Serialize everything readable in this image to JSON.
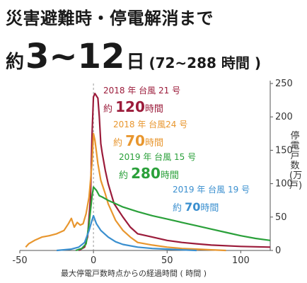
{
  "header": {
    "line1": "災害避難時・停電解消まで",
    "line2_prefix": "約",
    "line2_big": "3~12",
    "line2_unit": "日",
    "line2_paren": "(72~288 時間 )"
  },
  "chart_data": {
    "type": "line",
    "xlabel": "最大停電戸数時点からの経過時間 ( 時間 )",
    "ylabel": "停電戸数 (万戸)",
    "xlim": [
      -50,
      120
    ],
    "ylim": [
      0,
      250
    ],
    "xticks": [
      -50,
      0,
      50,
      100
    ],
    "yticks": [
      0,
      50,
      100,
      150,
      200,
      250
    ],
    "grid": false,
    "series": [
      {
        "name": "2018 年 台風 21 号",
        "value_label": "約 120 時間",
        "color": "#9b1b3a",
        "points": [
          [
            -10,
            0
          ],
          [
            -6,
            5
          ],
          [
            -4,
            20
          ],
          [
            -2,
            80
          ],
          [
            -1,
            170
          ],
          [
            0,
            230
          ],
          [
            1,
            235
          ],
          [
            3,
            228
          ],
          [
            4,
            200
          ],
          [
            5,
            160
          ],
          [
            6,
            145
          ],
          [
            8,
            120
          ],
          [
            10,
            100
          ],
          [
            12,
            85
          ],
          [
            14,
            70
          ],
          [
            17,
            60
          ],
          [
            20,
            50
          ],
          [
            25,
            35
          ],
          [
            30,
            25
          ],
          [
            40,
            20
          ],
          [
            50,
            15
          ],
          [
            60,
            12
          ],
          [
            70,
            10
          ],
          [
            80,
            8
          ],
          [
            100,
            6
          ],
          [
            120,
            5
          ]
        ]
      },
      {
        "name": "2018 年 台風24 号",
        "value_label": "約 70 時間",
        "color": "#e8962e",
        "points": [
          [
            -46,
            5
          ],
          [
            -44,
            10
          ],
          [
            -40,
            15
          ],
          [
            -35,
            20
          ],
          [
            -30,
            22
          ],
          [
            -25,
            25
          ],
          [
            -20,
            30
          ],
          [
            -17,
            40
          ],
          [
            -15,
            48
          ],
          [
            -13,
            35
          ],
          [
            -11,
            42
          ],
          [
            -9,
            38
          ],
          [
            -7,
            40
          ],
          [
            -5,
            55
          ],
          [
            -3,
            80
          ],
          [
            -1,
            130
          ],
          [
            0,
            175
          ],
          [
            1,
            165
          ],
          [
            3,
            130
          ],
          [
            5,
            105
          ],
          [
            8,
            85
          ],
          [
            10,
            70
          ],
          [
            13,
            55
          ],
          [
            15,
            45
          ],
          [
            20,
            30
          ],
          [
            25,
            20
          ],
          [
            30,
            12
          ],
          [
            40,
            8
          ],
          [
            50,
            5
          ],
          [
            60,
            3
          ],
          [
            70,
            2
          ],
          [
            80,
            1
          ],
          [
            90,
            0
          ]
        ]
      },
      {
        "name": "2019 年 台風 15 号",
        "value_label": "約 280 時間",
        "color": "#2aa03a",
        "points": [
          [
            -12,
            0
          ],
          [
            -8,
            3
          ],
          [
            -5,
            10
          ],
          [
            -3,
            40
          ],
          [
            -1,
            80
          ],
          [
            0,
            95
          ],
          [
            2,
            90
          ],
          [
            4,
            82
          ],
          [
            6,
            80
          ],
          [
            10,
            75
          ],
          [
            15,
            70
          ],
          [
            20,
            65
          ],
          [
            30,
            58
          ],
          [
            40,
            52
          ],
          [
            50,
            47
          ],
          [
            60,
            42
          ],
          [
            70,
            37
          ],
          [
            80,
            32
          ],
          [
            90,
            27
          ],
          [
            100,
            22
          ],
          [
            110,
            18
          ],
          [
            120,
            15
          ]
        ]
      },
      {
        "name": "2019 年 台風 19 号",
        "value_label": "約 70 時間",
        "color": "#3a8fcf",
        "points": [
          [
            -25,
            0
          ],
          [
            -15,
            2
          ],
          [
            -10,
            5
          ],
          [
            -6,
            12
          ],
          [
            -3,
            30
          ],
          [
            -1,
            45
          ],
          [
            0,
            52
          ],
          [
            2,
            40
          ],
          [
            5,
            30
          ],
          [
            10,
            20
          ],
          [
            15,
            13
          ],
          [
            20,
            9
          ],
          [
            30,
            5
          ],
          [
            40,
            3
          ],
          [
            50,
            2
          ],
          [
            60,
            1
          ],
          [
            70,
            0
          ]
        ]
      }
    ]
  }
}
